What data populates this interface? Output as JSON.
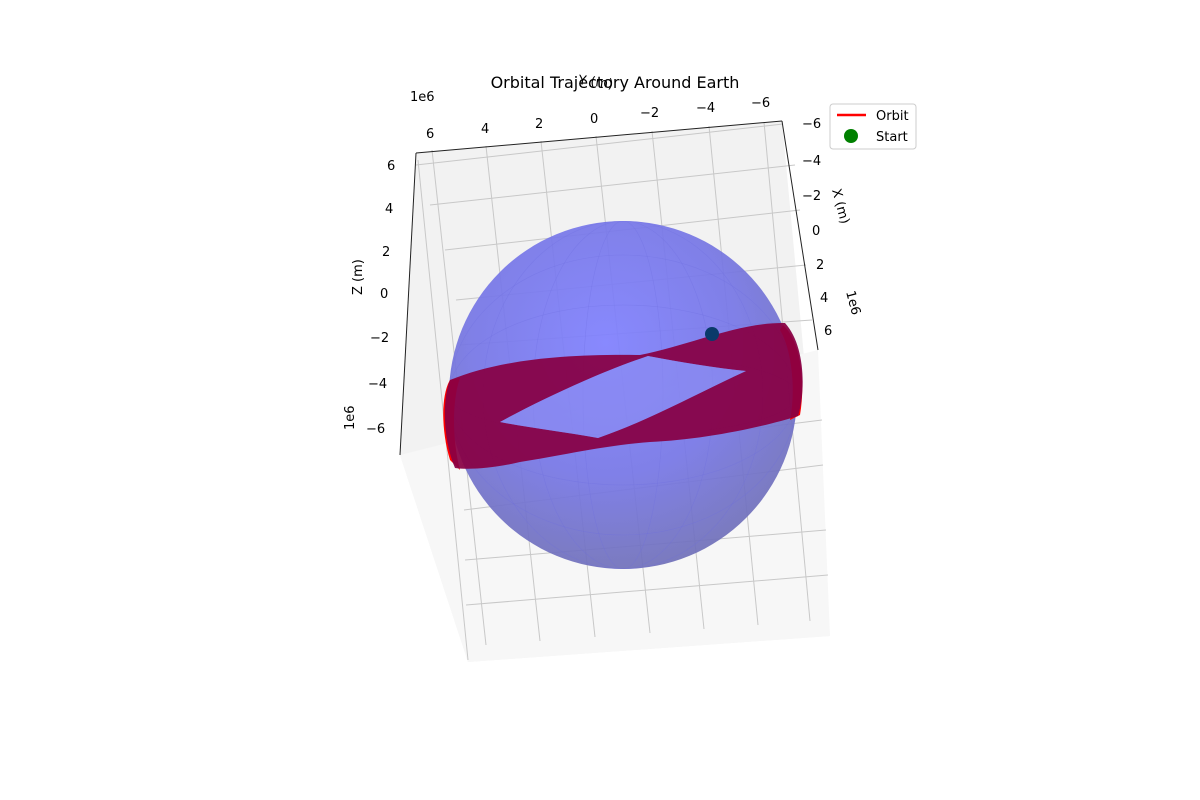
{
  "chart_data": {
    "type": "3d-surface-line",
    "title": "Orbital Trajectory Around Earth",
    "xlabel": "X (m)",
    "ylabel": "Y (m)",
    "zlabel": "Z (m)",
    "offset_text": "1e6",
    "xlim": [
      -6.5,
      6.5
    ],
    "ylim": [
      -6.5,
      6.5
    ],
    "zlim": [
      -6.5,
      6.5
    ],
    "grid": true,
    "legend_position": "top-right",
    "x_ticks": [
      "−6",
      "−4",
      "−2",
      "0",
      "2",
      "4",
      "6"
    ],
    "y_ticks": [
      "6",
      "4",
      "2",
      "0",
      "−2",
      "−4",
      "−6"
    ],
    "z_ticks": [
      "6",
      "4",
      "2",
      "0",
      "−2",
      "−4",
      "−6"
    ],
    "earth": {
      "name": "Earth",
      "radius": 6.371,
      "color": "#7a7cf0"
    },
    "series": [
      {
        "name": "Orbit",
        "color": "#ff0000",
        "marker": "line"
      },
      {
        "name": "Start",
        "color": "#008000",
        "marker": "circle"
      }
    ]
  }
}
